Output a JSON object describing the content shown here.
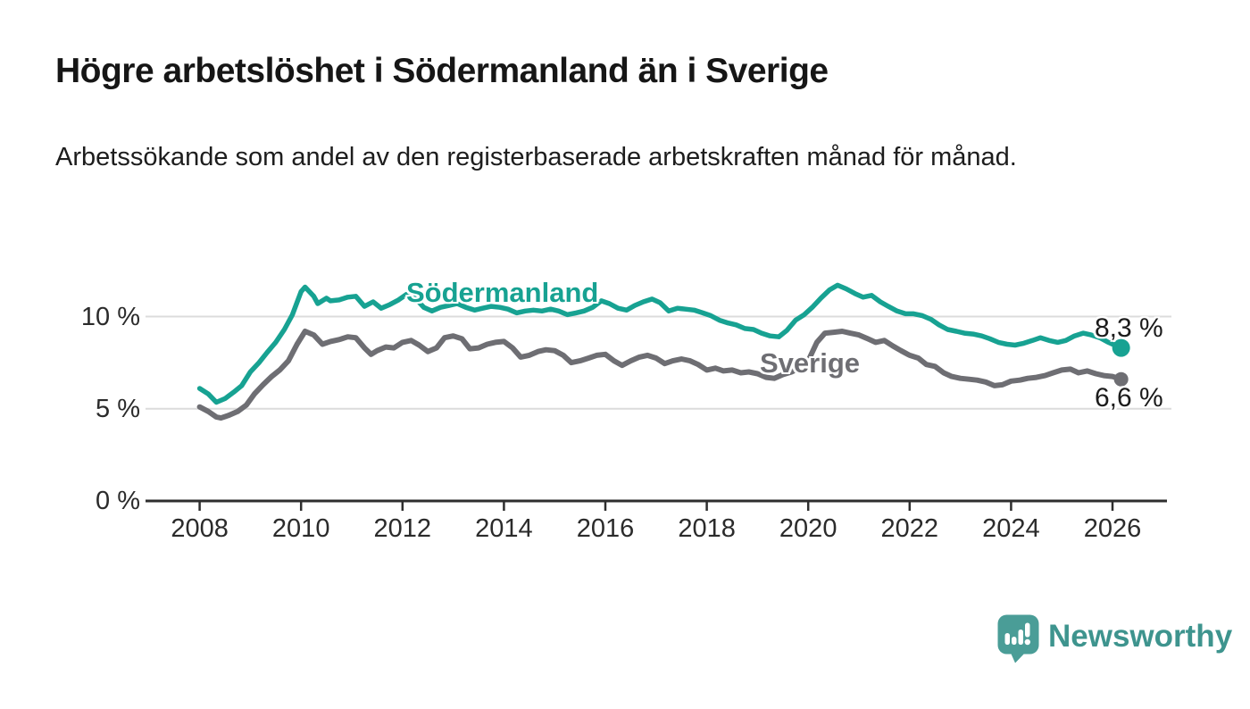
{
  "header": {
    "title": "Högre arbetslöshet i Södermanland än i Sverige",
    "subtitle": "Arbetssökande som andel av den registerbaserade arbetskraften månad för månad."
  },
  "chart": {
    "series_label_sodermanland": "Södermanland",
    "series_label_sverige": "Sverige",
    "end_value_sodermanland": "8,3 %",
    "end_value_sverige": "6,6 %"
  },
  "footer": {
    "brand": "Newsworthy"
  },
  "chart_data": {
    "type": "line",
    "title": "Högre arbetslöshet i Södermanland än i Sverige",
    "subtitle": "Arbetssökande som andel av den registerbaserade arbetskraften månad för månad.",
    "unit": "%",
    "grid": "horizontal-only",
    "legend_position": "inline-labels",
    "xlim": [
      2007.0,
      2027.1
    ],
    "ylim": [
      0,
      12.6
    ],
    "x_ticks": [
      {
        "v": 2008,
        "label": "2008"
      },
      {
        "v": 2010,
        "label": "2010"
      },
      {
        "v": 2012,
        "label": "2012"
      },
      {
        "v": 2014,
        "label": "2014"
      },
      {
        "v": 2016,
        "label": "2016"
      },
      {
        "v": 2018,
        "label": "2018"
      },
      {
        "v": 2020,
        "label": "2020"
      },
      {
        "v": 2022,
        "label": "2022"
      },
      {
        "v": 2024,
        "label": "2024"
      },
      {
        "v": 2026,
        "label": "2026"
      }
    ],
    "y_ticks": [
      {
        "v": 0,
        "label": "0 %"
      },
      {
        "v": 5,
        "label": "5 %"
      },
      {
        "v": 10,
        "label": "10 %"
      }
    ],
    "y_gridlines": [
      5,
      10
    ],
    "colors": {
      "sodermanland": "#17a292",
      "sverige": "#6e6e73",
      "grid": "#dcdcdc",
      "axis": "#2e2e2e"
    },
    "series": [
      {
        "name": "Södermanland",
        "color": "#17a292",
        "end_label": "8,3 %",
        "last_value": 8.3,
        "points": [
          [
            2008.0,
            6.1
          ],
          [
            2008.17,
            5.8
          ],
          [
            2008.33,
            5.35
          ],
          [
            2008.5,
            5.55
          ],
          [
            2008.67,
            5.9
          ],
          [
            2008.83,
            6.25
          ],
          [
            2009.0,
            7.0
          ],
          [
            2009.17,
            7.5
          ],
          [
            2009.33,
            8.05
          ],
          [
            2009.5,
            8.6
          ],
          [
            2009.67,
            9.3
          ],
          [
            2009.83,
            10.1
          ],
          [
            2010.0,
            11.35
          ],
          [
            2010.08,
            11.6
          ],
          [
            2010.25,
            11.1
          ],
          [
            2010.33,
            10.7
          ],
          [
            2010.5,
            11.0
          ],
          [
            2010.58,
            10.85
          ],
          [
            2010.75,
            10.9
          ],
          [
            2010.92,
            11.05
          ],
          [
            2011.08,
            11.1
          ],
          [
            2011.25,
            10.55
          ],
          [
            2011.42,
            10.8
          ],
          [
            2011.58,
            10.45
          ],
          [
            2011.75,
            10.65
          ],
          [
            2011.92,
            10.9
          ],
          [
            2012.08,
            11.2
          ],
          [
            2012.25,
            11.0
          ],
          [
            2012.42,
            10.5
          ],
          [
            2012.58,
            10.3
          ],
          [
            2012.75,
            10.5
          ],
          [
            2012.92,
            10.6
          ],
          [
            2013.08,
            10.7
          ],
          [
            2013.25,
            10.5
          ],
          [
            2013.42,
            10.35
          ],
          [
            2013.58,
            10.45
          ],
          [
            2013.75,
            10.55
          ],
          [
            2013.92,
            10.5
          ],
          [
            2014.08,
            10.4
          ],
          [
            2014.25,
            10.2
          ],
          [
            2014.42,
            10.3
          ],
          [
            2014.58,
            10.35
          ],
          [
            2014.75,
            10.3
          ],
          [
            2014.92,
            10.4
          ],
          [
            2015.08,
            10.3
          ],
          [
            2015.25,
            10.1
          ],
          [
            2015.42,
            10.2
          ],
          [
            2015.58,
            10.3
          ],
          [
            2015.75,
            10.5
          ],
          [
            2015.92,
            10.85
          ],
          [
            2016.08,
            10.7
          ],
          [
            2016.25,
            10.45
          ],
          [
            2016.42,
            10.35
          ],
          [
            2016.58,
            10.6
          ],
          [
            2016.75,
            10.8
          ],
          [
            2016.92,
            10.95
          ],
          [
            2017.08,
            10.75
          ],
          [
            2017.25,
            10.3
          ],
          [
            2017.42,
            10.45
          ],
          [
            2017.58,
            10.4
          ],
          [
            2017.75,
            10.35
          ],
          [
            2017.92,
            10.2
          ],
          [
            2018.08,
            10.05
          ],
          [
            2018.25,
            9.8
          ],
          [
            2018.42,
            9.65
          ],
          [
            2018.58,
            9.55
          ],
          [
            2018.75,
            9.35
          ],
          [
            2018.92,
            9.3
          ],
          [
            2019.08,
            9.1
          ],
          [
            2019.25,
            8.95
          ],
          [
            2019.42,
            8.9
          ],
          [
            2019.58,
            9.25
          ],
          [
            2019.75,
            9.8
          ],
          [
            2019.92,
            10.1
          ],
          [
            2020.08,
            10.5
          ],
          [
            2020.25,
            11.0
          ],
          [
            2020.42,
            11.45
          ],
          [
            2020.58,
            11.7
          ],
          [
            2020.75,
            11.5
          ],
          [
            2020.92,
            11.25
          ],
          [
            2021.08,
            11.05
          ],
          [
            2021.25,
            11.15
          ],
          [
            2021.42,
            10.8
          ],
          [
            2021.58,
            10.55
          ],
          [
            2021.75,
            10.3
          ],
          [
            2021.92,
            10.15
          ],
          [
            2022.08,
            10.15
          ],
          [
            2022.25,
            10.05
          ],
          [
            2022.42,
            9.85
          ],
          [
            2022.58,
            9.55
          ],
          [
            2022.75,
            9.3
          ],
          [
            2022.92,
            9.2
          ],
          [
            2023.08,
            9.1
          ],
          [
            2023.25,
            9.05
          ],
          [
            2023.42,
            8.95
          ],
          [
            2023.58,
            8.8
          ],
          [
            2023.75,
            8.6
          ],
          [
            2023.92,
            8.5
          ],
          [
            2024.08,
            8.45
          ],
          [
            2024.25,
            8.55
          ],
          [
            2024.42,
            8.7
          ],
          [
            2024.58,
            8.85
          ],
          [
            2024.75,
            8.7
          ],
          [
            2024.92,
            8.6
          ],
          [
            2025.08,
            8.7
          ],
          [
            2025.25,
            8.95
          ],
          [
            2025.42,
            9.1
          ],
          [
            2025.58,
            9.0
          ],
          [
            2025.75,
            8.85
          ],
          [
            2025.92,
            8.6
          ],
          [
            2026.08,
            8.4
          ],
          [
            2026.17,
            8.3
          ]
        ]
      },
      {
        "name": "Sverige",
        "color": "#6e6e73",
        "end_label": "6,6 %",
        "last_value": 6.6,
        "points": [
          [
            2008.0,
            5.1
          ],
          [
            2008.17,
            4.85
          ],
          [
            2008.33,
            4.55
          ],
          [
            2008.42,
            4.5
          ],
          [
            2008.58,
            4.65
          ],
          [
            2008.75,
            4.85
          ],
          [
            2008.92,
            5.2
          ],
          [
            2009.08,
            5.8
          ],
          [
            2009.25,
            6.3
          ],
          [
            2009.42,
            6.75
          ],
          [
            2009.58,
            7.1
          ],
          [
            2009.75,
            7.6
          ],
          [
            2009.92,
            8.5
          ],
          [
            2010.08,
            9.2
          ],
          [
            2010.25,
            9.0
          ],
          [
            2010.42,
            8.5
          ],
          [
            2010.58,
            8.65
          ],
          [
            2010.75,
            8.75
          ],
          [
            2010.92,
            8.9
          ],
          [
            2011.08,
            8.85
          ],
          [
            2011.25,
            8.3
          ],
          [
            2011.38,
            7.95
          ],
          [
            2011.5,
            8.15
          ],
          [
            2011.67,
            8.35
          ],
          [
            2011.83,
            8.3
          ],
          [
            2012.0,
            8.6
          ],
          [
            2012.17,
            8.7
          ],
          [
            2012.33,
            8.45
          ],
          [
            2012.5,
            8.1
          ],
          [
            2012.67,
            8.3
          ],
          [
            2012.83,
            8.85
          ],
          [
            2013.0,
            8.95
          ],
          [
            2013.17,
            8.8
          ],
          [
            2013.33,
            8.25
          ],
          [
            2013.5,
            8.3
          ],
          [
            2013.67,
            8.5
          ],
          [
            2013.83,
            8.6
          ],
          [
            2014.0,
            8.65
          ],
          [
            2014.17,
            8.3
          ],
          [
            2014.33,
            7.8
          ],
          [
            2014.5,
            7.9
          ],
          [
            2014.67,
            8.1
          ],
          [
            2014.83,
            8.2
          ],
          [
            2015.0,
            8.15
          ],
          [
            2015.17,
            7.9
          ],
          [
            2015.33,
            7.5
          ],
          [
            2015.5,
            7.6
          ],
          [
            2015.67,
            7.75
          ],
          [
            2015.83,
            7.9
          ],
          [
            2016.0,
            7.95
          ],
          [
            2016.17,
            7.6
          ],
          [
            2016.33,
            7.35
          ],
          [
            2016.5,
            7.6
          ],
          [
            2016.67,
            7.8
          ],
          [
            2016.83,
            7.9
          ],
          [
            2017.0,
            7.75
          ],
          [
            2017.17,
            7.45
          ],
          [
            2017.33,
            7.6
          ],
          [
            2017.5,
            7.7
          ],
          [
            2017.67,
            7.6
          ],
          [
            2017.83,
            7.4
          ],
          [
            2018.0,
            7.1
          ],
          [
            2018.17,
            7.2
          ],
          [
            2018.33,
            7.05
          ],
          [
            2018.5,
            7.1
          ],
          [
            2018.67,
            6.95
          ],
          [
            2018.83,
            7.0
          ],
          [
            2019.0,
            6.9
          ],
          [
            2019.17,
            6.7
          ],
          [
            2019.33,
            6.65
          ],
          [
            2019.5,
            6.85
          ],
          [
            2019.67,
            7.0
          ],
          [
            2019.83,
            7.2
          ],
          [
            2020.0,
            7.6
          ],
          [
            2020.17,
            8.6
          ],
          [
            2020.33,
            9.1
          ],
          [
            2020.5,
            9.15
          ],
          [
            2020.67,
            9.2
          ],
          [
            2020.83,
            9.1
          ],
          [
            2021.0,
            9.0
          ],
          [
            2021.17,
            8.8
          ],
          [
            2021.33,
            8.6
          ],
          [
            2021.5,
            8.7
          ],
          [
            2021.67,
            8.4
          ],
          [
            2021.83,
            8.15
          ],
          [
            2022.0,
            7.9
          ],
          [
            2022.17,
            7.75
          ],
          [
            2022.33,
            7.4
          ],
          [
            2022.5,
            7.3
          ],
          [
            2022.67,
            6.95
          ],
          [
            2022.83,
            6.75
          ],
          [
            2023.0,
            6.65
          ],
          [
            2023.17,
            6.6
          ],
          [
            2023.33,
            6.55
          ],
          [
            2023.5,
            6.45
          ],
          [
            2023.67,
            6.25
          ],
          [
            2023.83,
            6.3
          ],
          [
            2024.0,
            6.5
          ],
          [
            2024.17,
            6.55
          ],
          [
            2024.33,
            6.65
          ],
          [
            2024.5,
            6.7
          ],
          [
            2024.67,
            6.8
          ],
          [
            2024.83,
            6.95
          ],
          [
            2025.0,
            7.1
          ],
          [
            2025.17,
            7.15
          ],
          [
            2025.33,
            6.95
          ],
          [
            2025.5,
            7.05
          ],
          [
            2025.67,
            6.9
          ],
          [
            2025.83,
            6.8
          ],
          [
            2026.0,
            6.75
          ],
          [
            2026.17,
            6.6
          ]
        ]
      }
    ]
  }
}
